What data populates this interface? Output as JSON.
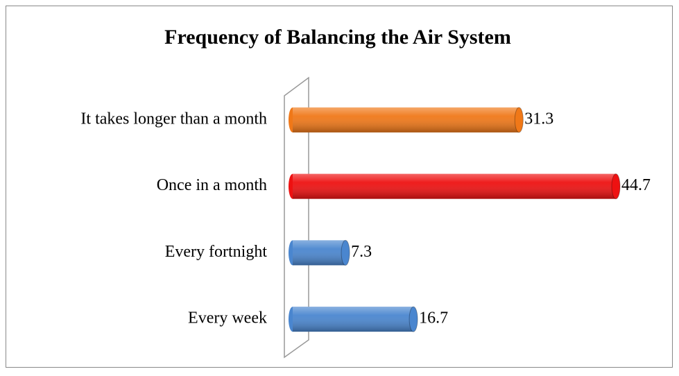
{
  "chart_data": {
    "type": "bar",
    "orientation": "horizontal",
    "title": "Frequency of Balancing the Air System",
    "categories": [
      "It takes longer than a month",
      "Once in a month",
      "Every fortnight",
      "Every week"
    ],
    "values": [
      31.3,
      44.7,
      7.3,
      16.7
    ],
    "colors": [
      "#f07818",
      "#ee1111",
      "#4a86cf",
      "#4a86cf"
    ]
  }
}
